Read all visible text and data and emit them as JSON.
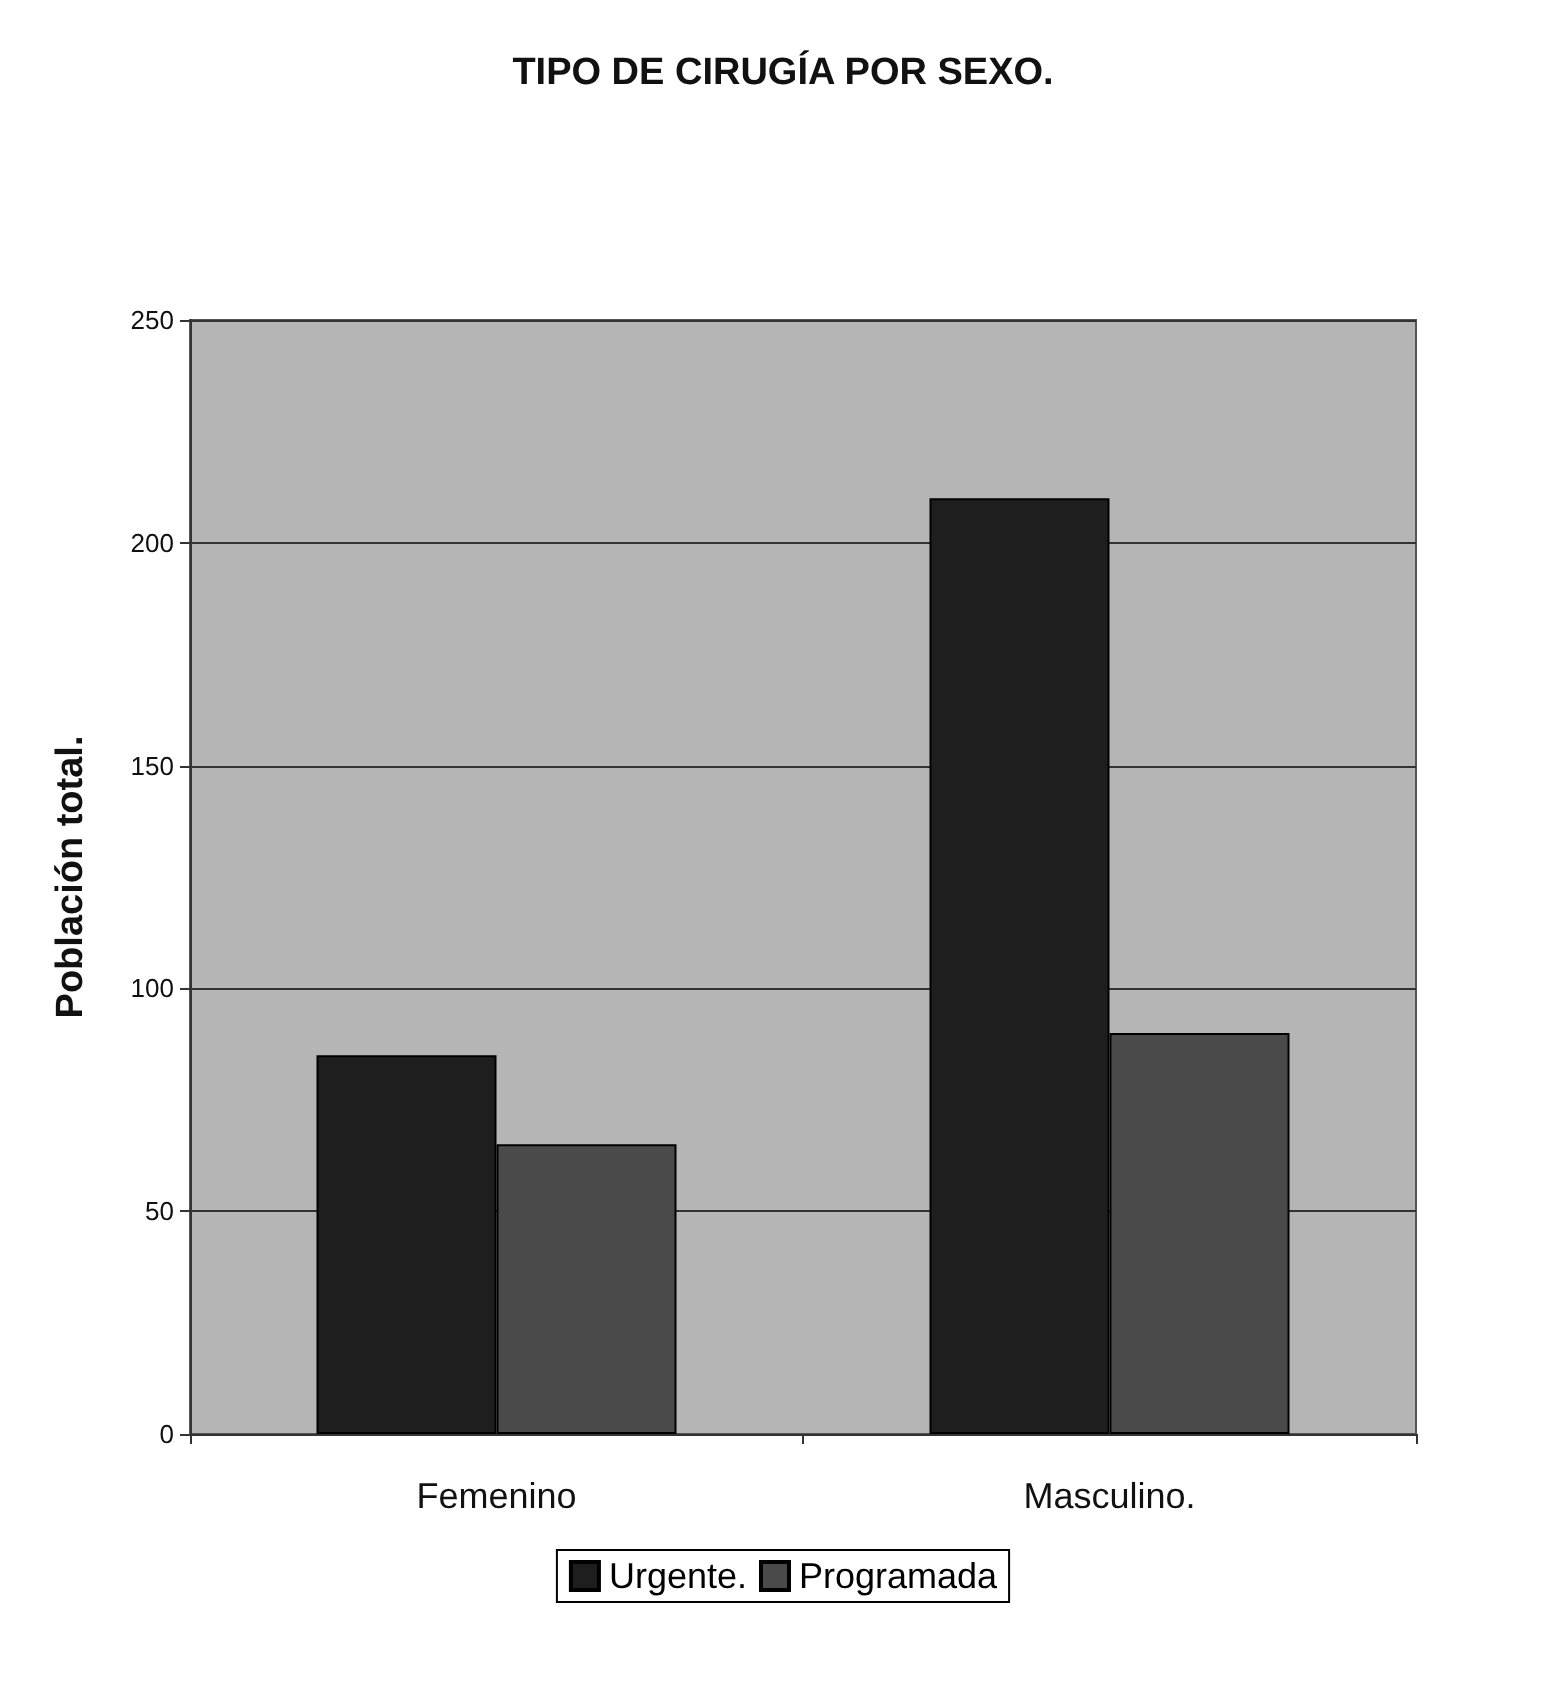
{
  "chart_data": {
    "type": "bar",
    "title": "TIPO DE CIRUGÍA POR SEXO.",
    "ylabel": "Población total.",
    "categories": [
      "Femenino",
      "Masculino."
    ],
    "series": [
      {
        "name": "Urgente.",
        "color": "#1e1e1e",
        "values": [
          85,
          210
        ]
      },
      {
        "name": "Programada",
        "color": "#4a4a4a",
        "values": [
          65,
          90
        ]
      }
    ],
    "ylim": [
      0,
      250
    ],
    "yticks": [
      0,
      50,
      100,
      150,
      200,
      250
    ],
    "grid": "y",
    "legend": "bottom"
  }
}
